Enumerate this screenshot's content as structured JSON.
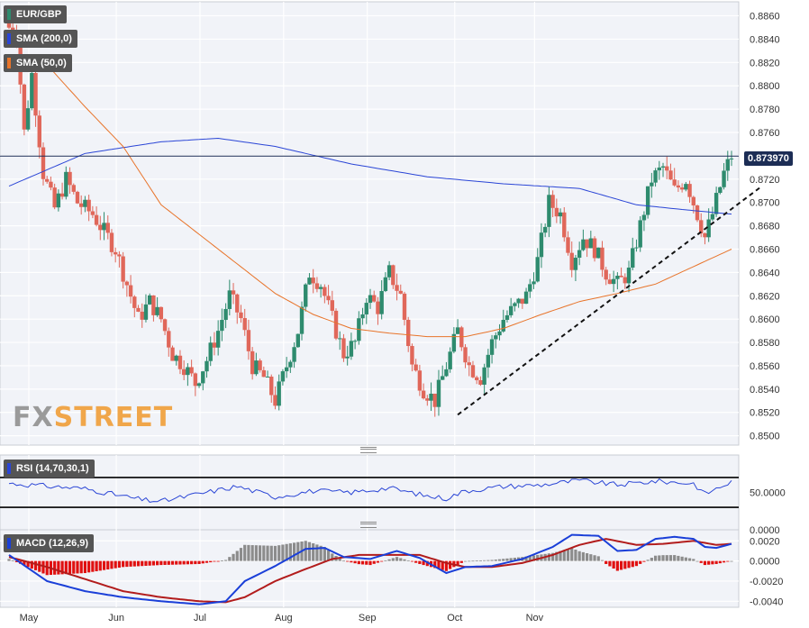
{
  "instrument": "EUR/GBP",
  "watermark": {
    "fx": "FX",
    "street": "STREET"
  },
  "legends": {
    "sma200": "SMA (200,0)",
    "sma50": "SMA (50,0)",
    "rsi": "RSI (14,70,30,1)",
    "macd": "MACD (12,26,9)"
  },
  "current_price_label": "0.873970",
  "colors": {
    "bull": "#2e8b6e",
    "bear": "#e0675a",
    "sma200": "#2a45d6",
    "sma50": "#e8742a",
    "trend": "#111111",
    "macd": "#1a3fd8",
    "signal": "#b21c1c",
    "hist_pos": "#8c8c8c",
    "hist_neg": "#e01010",
    "rsi": "#2a45d6",
    "badge": "#1c2d55"
  },
  "chart_data": [
    {
      "type": "candlestick",
      "title": "EUR/GBP",
      "ylim": [
        0.8492,
        0.8872
      ],
      "y_ticks": [
        "0.8500",
        "0.8520",
        "0.8540",
        "0.8560",
        "0.8580",
        "0.8600",
        "0.8620",
        "0.8640",
        "0.8660",
        "0.8680",
        "0.8700",
        "0.8720",
        "0.8740",
        "0.8760",
        "0.8780",
        "0.8800",
        "0.8820",
        "0.8840",
        "0.8860"
      ],
      "x_months": [
        "May",
        "Jun",
        "Jul",
        "Aug",
        "Sep",
        "Oct",
        "Nov"
      ],
      "current_price": 0.87397,
      "close_anchors": [
        [
          0,
          0.885
        ],
        [
          2,
          0.8845
        ],
        [
          4,
          0.876
        ],
        [
          6,
          0.881
        ],
        [
          9,
          0.8725
        ],
        [
          12,
          0.8695
        ],
        [
          15,
          0.872
        ],
        [
          18,
          0.87
        ],
        [
          22,
          0.869
        ],
        [
          25,
          0.8675
        ],
        [
          28,
          0.866
        ],
        [
          31,
          0.863
        ],
        [
          34,
          0.86
        ],
        [
          37,
          0.8615
        ],
        [
          40,
          0.86
        ],
        [
          43,
          0.857
        ],
        [
          46,
          0.856
        ],
        [
          49,
          0.8545
        ],
        [
          52,
          0.8565
        ],
        [
          55,
          0.859
        ],
        [
          58,
          0.862
        ],
        [
          61,
          0.86
        ],
        [
          64,
          0.856
        ],
        [
          67,
          0.855
        ],
        [
          70,
          0.853
        ],
        [
          73,
          0.856
        ],
        [
          76,
          0.859
        ],
        [
          79,
          0.864
        ],
        [
          82,
          0.863
        ],
        [
          85,
          0.86
        ],
        [
          88,
          0.857
        ],
        [
          91,
          0.858
        ],
        [
          94,
          0.862
        ],
        [
          97,
          0.861
        ],
        [
          100,
          0.864
        ],
        [
          103,
          0.862
        ],
        [
          106,
          0.856
        ],
        [
          109,
          0.854
        ],
        [
          112,
          0.853
        ],
        [
          115,
          0.856
        ],
        [
          118,
          0.859
        ],
        [
          121,
          0.856
        ],
        [
          124,
          0.855
        ],
        [
          127,
          0.858
        ],
        [
          130,
          0.86
        ],
        [
          133,
          0.861
        ],
        [
          136,
          0.862
        ],
        [
          139,
          0.865
        ],
        [
          142,
          0.87
        ],
        [
          145,
          0.869
        ],
        [
          148,
          0.865
        ],
        [
          151,
          0.867
        ],
        [
          154,
          0.866
        ],
        [
          157,
          0.864
        ],
        [
          160,
          0.863
        ],
        [
          163,
          0.864
        ],
        [
          166,
          0.868
        ],
        [
          169,
          0.872
        ],
        [
          172,
          0.873
        ],
        [
          175,
          0.871
        ],
        [
          178,
          0.872
        ],
        [
          181,
          0.869
        ],
        [
          183,
          0.867
        ],
        [
          185,
          0.869
        ],
        [
          188,
          0.8725
        ],
        [
          190,
          0.874
        ]
      ],
      "sma200_anchors": [
        [
          0,
          0.8714
        ],
        [
          20,
          0.8742
        ],
        [
          40,
          0.8752
        ],
        [
          55,
          0.8755
        ],
        [
          70,
          0.8748
        ],
        [
          90,
          0.8733
        ],
        [
          110,
          0.8722
        ],
        [
          130,
          0.8716
        ],
        [
          150,
          0.8712
        ],
        [
          165,
          0.8698
        ],
        [
          180,
          0.8693
        ],
        [
          190,
          0.869
        ]
      ],
      "sma50_anchors": [
        [
          10,
          0.8818
        ],
        [
          20,
          0.8782
        ],
        [
          30,
          0.8748
        ],
        [
          40,
          0.8698
        ],
        [
          55,
          0.866
        ],
        [
          70,
          0.8622
        ],
        [
          80,
          0.8604
        ],
        [
          90,
          0.8592
        ],
        [
          100,
          0.8588
        ],
        [
          110,
          0.8585
        ],
        [
          120,
          0.8585
        ],
        [
          130,
          0.8592
        ],
        [
          140,
          0.8604
        ],
        [
          150,
          0.8615
        ],
        [
          160,
          0.8622
        ],
        [
          170,
          0.863
        ],
        [
          180,
          0.8645
        ],
        [
          190,
          0.866
        ]
      ],
      "trendline": [
        [
          0.8518,
          118
        ],
        [
          0.8714,
          198
        ]
      ]
    },
    {
      "type": "line",
      "title": "RSI (14,70,30,1)",
      "ylim": [
        0,
        100
      ],
      "y_ticks": [
        "50.0000",
        "0.0000"
      ],
      "levels": [
        70,
        30
      ],
      "anchors": [
        [
          0,
          62
        ],
        [
          20,
          55
        ],
        [
          35,
          40
        ],
        [
          40,
          38
        ],
        [
          50,
          48
        ],
        [
          60,
          58
        ],
        [
          70,
          44
        ],
        [
          80,
          52
        ],
        [
          90,
          50
        ],
        [
          100,
          56
        ],
        [
          110,
          45
        ],
        [
          115,
          42
        ],
        [
          120,
          52
        ],
        [
          130,
          58
        ],
        [
          140,
          60
        ],
        [
          150,
          66
        ],
        [
          160,
          60
        ],
        [
          170,
          65
        ],
        [
          180,
          62
        ],
        [
          183,
          48
        ],
        [
          190,
          64
        ]
      ]
    },
    {
      "type": "macd",
      "title": "MACD (12,26,9)",
      "ylim": [
        -0.0046,
        0.0031
      ],
      "y_ticks": [
        "0.0020",
        "0.0000",
        "-0.0020",
        "-0.0040"
      ],
      "macd_anchors": [
        [
          0,
          0.0006
        ],
        [
          10,
          -0.002
        ],
        [
          20,
          -0.003
        ],
        [
          30,
          -0.0036
        ],
        [
          40,
          -0.004
        ],
        [
          50,
          -0.0043
        ],
        [
          57,
          -0.004
        ],
        [
          62,
          -0.002
        ],
        [
          70,
          -0.0005
        ],
        [
          78,
          0.0012
        ],
        [
          83,
          0.0013
        ],
        [
          88,
          0.0004
        ],
        [
          95,
          0.0002
        ],
        [
          102,
          0.001
        ],
        [
          108,
          0.0003
        ],
        [
          115,
          -0.0012
        ],
        [
          120,
          -0.0006
        ],
        [
          127,
          -0.0005
        ],
        [
          135,
          0.0002
        ],
        [
          143,
          0.0014
        ],
        [
          148,
          0.0026
        ],
        [
          155,
          0.0025
        ],
        [
          160,
          0.001
        ],
        [
          165,
          0.0011
        ],
        [
          170,
          0.0022
        ],
        [
          175,
          0.0024
        ],
        [
          180,
          0.0022
        ],
        [
          183,
          0.0014
        ],
        [
          186,
          0.0013
        ],
        [
          190,
          0.0017
        ]
      ],
      "signal_anchors": [
        [
          0,
          0.0004
        ],
        [
          10,
          -0.0006
        ],
        [
          20,
          -0.0018
        ],
        [
          30,
          -0.003
        ],
        [
          40,
          -0.0036
        ],
        [
          50,
          -0.004
        ],
        [
          57,
          -0.0041
        ],
        [
          62,
          -0.0036
        ],
        [
          70,
          -0.002
        ],
        [
          78,
          -0.0008
        ],
        [
          85,
          0.0002
        ],
        [
          92,
          0.0006
        ],
        [
          100,
          0.0006
        ],
        [
          108,
          0.0006
        ],
        [
          115,
          -0.0002
        ],
        [
          120,
          -0.0006
        ],
        [
          127,
          -0.0006
        ],
        [
          135,
          -0.0002
        ],
        [
          143,
          0.0006
        ],
        [
          150,
          0.0016
        ],
        [
          157,
          0.0022
        ],
        [
          165,
          0.0016
        ],
        [
          172,
          0.0017
        ],
        [
          180,
          0.002
        ],
        [
          186,
          0.0016
        ],
        [
          190,
          0.0017
        ]
      ]
    }
  ]
}
